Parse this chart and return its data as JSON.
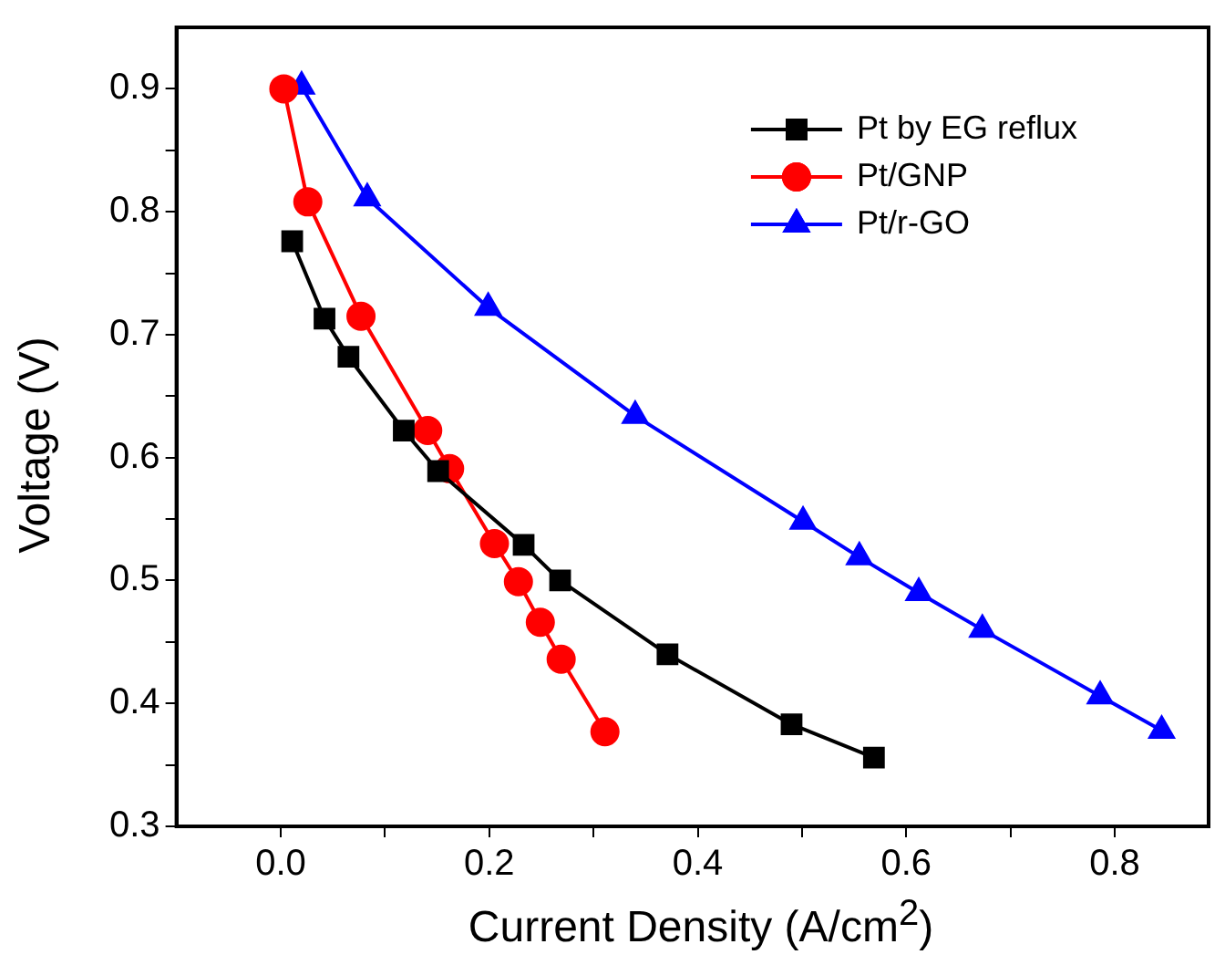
{
  "chart_data": {
    "type": "line",
    "xlabel": "Current Density (A/cm$^{2}$)",
    "ylabel": "Voltage (V)",
    "xlim": [
      -0.1,
      0.89
    ],
    "ylim": [
      0.3,
      0.95
    ],
    "xticks": [
      {
        "value": 0,
        "label": "0.0"
      },
      {
        "value": 0.1,
        "label": null
      },
      0.2,
      {
        "value": 0.3,
        "label": null
      },
      0.4,
      {
        "value": 0.5,
        "label": null
      },
      0.6,
      {
        "value": 0.7,
        "label": null
      },
      0.8
    ],
    "yticks": [
      0.3,
      {
        "value": 0.35,
        "label": null
      },
      0.4,
      {
        "value": 0.45,
        "label": null
      },
      0.5,
      {
        "value": 0.55,
        "label": null
      },
      0.6,
      {
        "value": 0.65,
        "label": null
      },
      0.7,
      {
        "value": 0.75,
        "label": null
      },
      0.8,
      {
        "value": 0.85,
        "label": null
      },
      0.9
    ],
    "grid": false,
    "legend": "top right",
    "line_style": "solid",
    "series": [
      {
        "name": "Pt by EG reflux",
        "color": "#000000",
        "marker": "square",
        "x": [
          0.011,
          0.042,
          0.065,
          0.118,
          0.151,
          0.233,
          0.268,
          0.371,
          0.49,
          0.569
        ],
        "values": [
          0.776,
          0.713,
          0.682,
          0.622,
          0.589,
          0.529,
          0.5,
          0.44,
          0.383,
          0.356
        ]
      },
      {
        "name": "Pt/GNP",
        "color": "#ff0000",
        "marker": "circle",
        "x": [
          0.003,
          0.026,
          0.077,
          0.141,
          0.162,
          0.205,
          0.228,
          0.249,
          0.269,
          0.311
        ],
        "values": [
          0.9,
          0.808,
          0.715,
          0.622,
          0.591,
          0.53,
          0.499,
          0.466,
          0.436,
          0.377
        ]
      },
      {
        "name": "Pt/r-GO",
        "color": "#0000ff",
        "marker": "triangle",
        "x": [
          0.02,
          0.083,
          0.199,
          0.34,
          0.501,
          0.555,
          0.612,
          0.673,
          0.786,
          0.845
        ],
        "values": [
          0.902,
          0.811,
          0.722,
          0.634,
          0.548,
          0.519,
          0.49,
          0.46,
          0.406,
          0.378
        ]
      }
    ]
  }
}
